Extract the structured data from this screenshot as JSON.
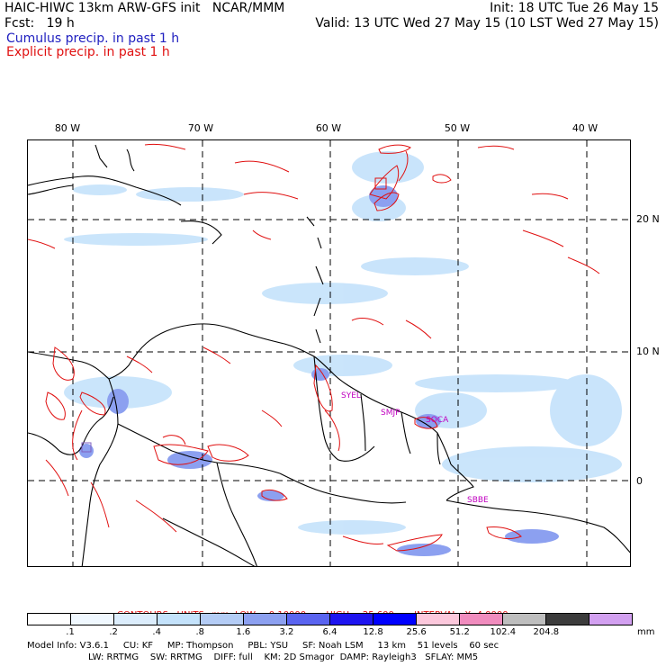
{
  "header": {
    "title_left": "HAIC-HIWC 13km ARW-GFS init   NCAR/MMM",
    "forecast": "Fcst:   19 h",
    "init": "Init: 18 UTC Tue 26 May 15",
    "valid": "Valid: 13 UTC Wed 27 May 15 (10 LST Wed 27 May 15)",
    "cumulus_label": "Cumulus precip. in past 1 h",
    "explicit_label": "Explicit precip. in past 1 h"
  },
  "map": {
    "lon_labels": [
      "80 W",
      "70 W",
      "60 W",
      "50 W",
      "40 W"
    ],
    "lat_labels": [
      "20 N",
      "10 N",
      "0"
    ],
    "station_labels": [
      "SYEL",
      "SMJP",
      "SOCA",
      "SBBE"
    ],
    "extent": {
      "lon_min": -83.5,
      "lon_max": -35.5,
      "lat_min": -6.5,
      "lat_max": 27
    }
  },
  "contours": {
    "text": "CONTOURS:  UNITS=mm  LOW=  0.10000       HIGH=  25.600       INTERVAL=X  4.0000"
  },
  "colorbar": {
    "labels": [
      ".1",
      ".2",
      ".4",
      ".8",
      "1.6",
      "3.2",
      "6.4",
      "12.8",
      "25.6",
      "51.2",
      "102.4",
      "204.8"
    ],
    "unit": "mm",
    "colors": [
      "#ffffff",
      "#f0f8ff",
      "#dcedfc",
      "#c4e2fb",
      "#b4ccf5",
      "#8ca0f0",
      "#5a64f0",
      "#1e14f0",
      "#0000ff",
      "#fcc8dc",
      "#f08cbe",
      "#bebebe",
      "#3c3c3c",
      "#d2a0f0"
    ]
  },
  "footer": {
    "line1": "Model Info: V3.6.1     CU: KF     MP: Thompson     PBL: YSU     SF: Noah LSM     13 km    51 levels    60 sec",
    "line2": "LW: RRTMG    SW: RRTMG    DIFF: full    KM: 2D Smagor  DAMP: Rayleigh3   SFLAY: MM5"
  }
}
